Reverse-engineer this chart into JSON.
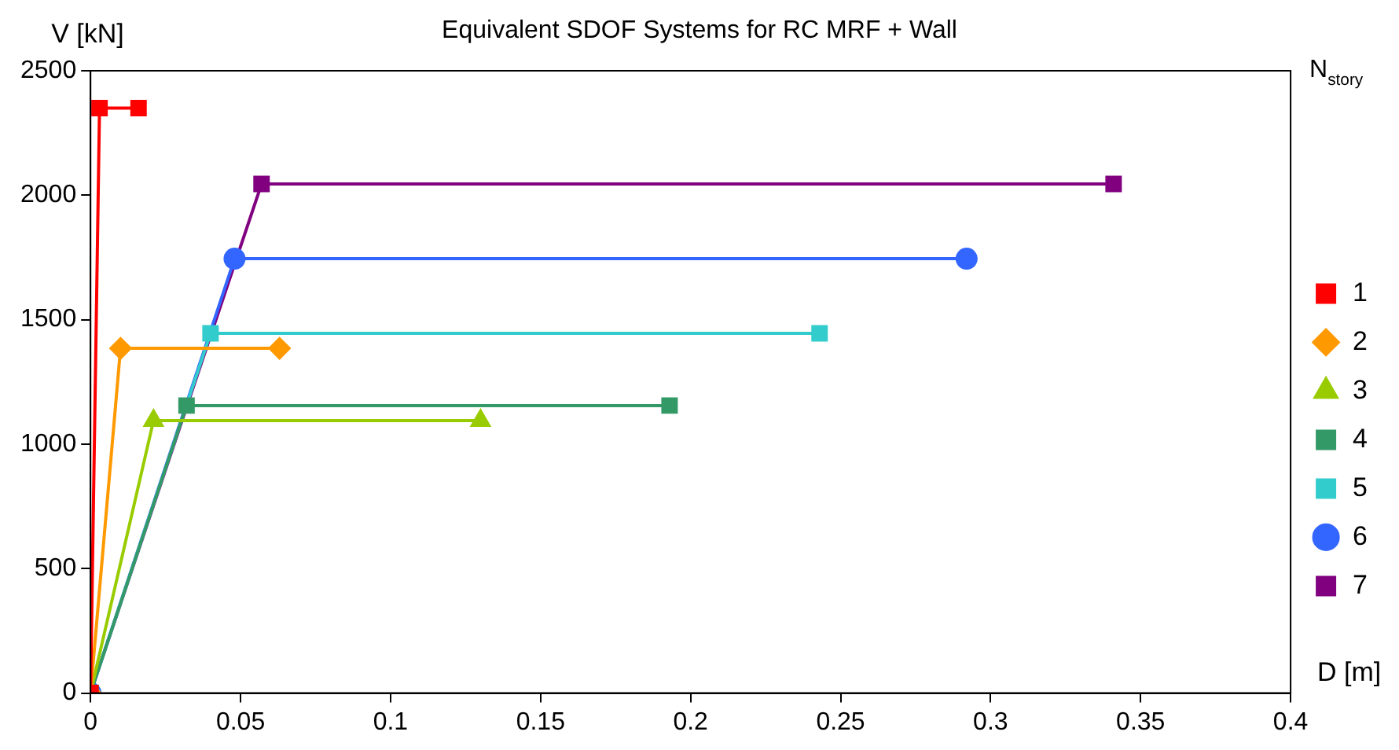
{
  "chart_data": {
    "type": "line",
    "title": "Equivalent SDOF Systems for RC MRF + Wall",
    "xlabel": "D [m]",
    "ylabel": "V [kN]",
    "legend_title": "N$_{story}$",
    "legend": "right",
    "grid": false,
    "xlim": [
      0,
      0.4
    ],
    "xticks": [
      0,
      0.05,
      0.1,
      0.15,
      0.2,
      0.25,
      0.3,
      0.35,
      0.4
    ],
    "ylim": [
      0,
      2500
    ],
    "yticks": [
      0,
      500,
      1000,
      1500,
      2000,
      2500
    ],
    "series": [
      {
        "name": "1",
        "color": "#ff0000",
        "marker": "square",
        "x": [
          0,
          0.003,
          0.016
        ],
        "values": [
          0,
          2350,
          2350
        ]
      },
      {
        "name": "2",
        "color": "#ff9900",
        "marker": "diamond",
        "x": [
          0,
          0.01,
          0.063
        ],
        "values": [
          0,
          1385,
          1385
        ]
      },
      {
        "name": "3",
        "color": "#99cc00",
        "marker": "triangle",
        "x": [
          0,
          0.021,
          0.13
        ],
        "values": [
          0,
          1095,
          1095
        ]
      },
      {
        "name": "4",
        "color": "#339966",
        "marker": "square",
        "x": [
          0,
          0.032,
          0.193
        ],
        "values": [
          0,
          1155,
          1155
        ]
      },
      {
        "name": "5",
        "color": "#33cccc",
        "marker": "square",
        "x": [
          0,
          0.04,
          0.243
        ],
        "values": [
          0,
          1445,
          1445
        ]
      },
      {
        "name": "6",
        "color": "#3366ff",
        "marker": "circle",
        "x": [
          0,
          0.048,
          0.292
        ],
        "values": [
          0,
          1745,
          1745
        ]
      },
      {
        "name": "7",
        "color": "#800080",
        "marker": "square",
        "x": [
          0,
          0.057,
          0.341
        ],
        "values": [
          0,
          2045,
          2045
        ]
      }
    ]
  }
}
